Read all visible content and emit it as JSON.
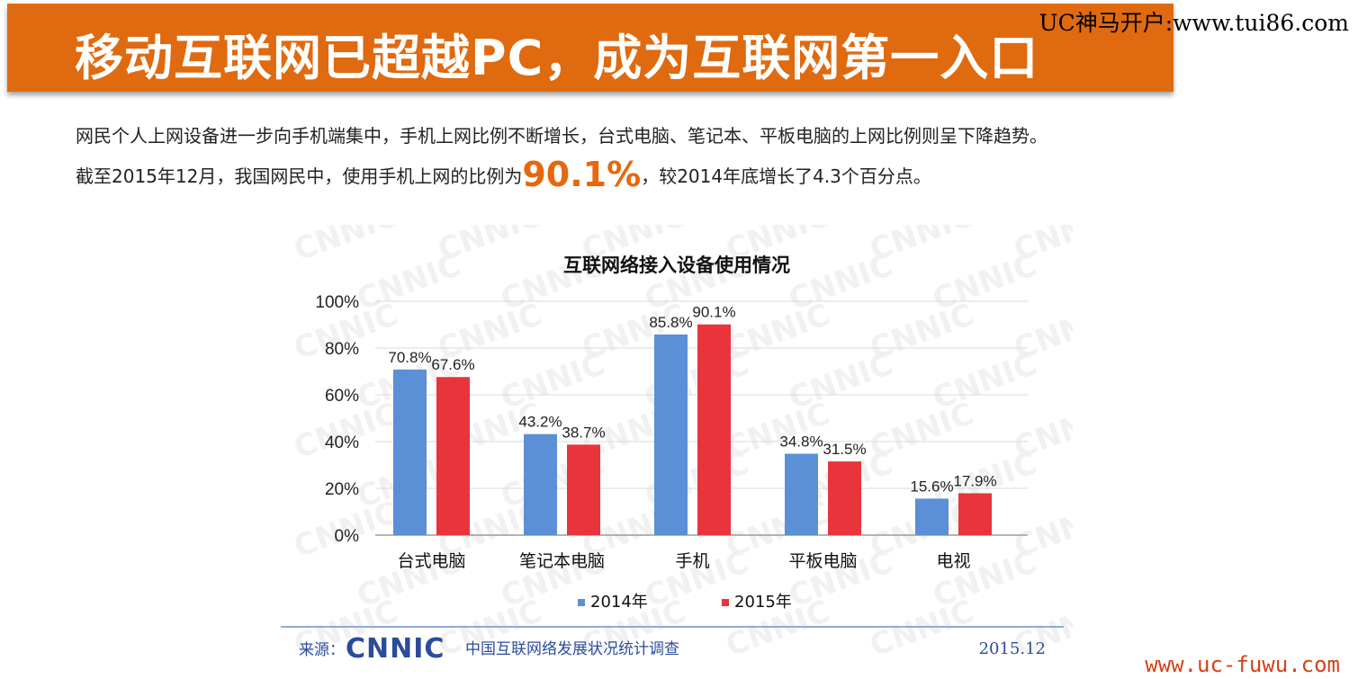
{
  "header": {
    "title": "移动互联网已超越PC，成为互联网第一入口",
    "watermark": "UC神马开户:www.tui86.com"
  },
  "intro": {
    "line1": "网民个人上网设备进一步向手机端集中，手机上网比例不断增长，台式电脑、笔记本、平板电脑的上网比例则呈下降趋势。",
    "line2_before": "截至2015年12月，我国网民中，使用手机上网的比例为",
    "highlight": "90.1%",
    "line2_after": "，较2014年底增长了4.3个百分点。"
  },
  "footer": {
    "source_label": "来源：",
    "org_logo": "CNNIC",
    "org_name": "中国互联网络发展状况统计调查",
    "date": "2015.12",
    "watermark": "www.uc-fuwu.com"
  },
  "colors": {
    "title_bg": "#e06a0f",
    "highlight": "#e8670c",
    "series_2014": "#5b8fd6",
    "series_2015": "#e8343a",
    "logo": "#2b4c9b"
  },
  "chart_data": {
    "type": "bar",
    "title": "互联网络接入设备使用情况",
    "categories": [
      "台式电脑",
      "笔记本电脑",
      "手机",
      "平板电脑",
      "电视"
    ],
    "series": [
      {
        "name": "2014年",
        "values": [
          70.8,
          43.2,
          85.8,
          34.8,
          15.6
        ],
        "labels": [
          "70.8%",
          "43.2%",
          "85.8%",
          "34.8%",
          "15.6%"
        ]
      },
      {
        "name": "2015年",
        "values": [
          67.6,
          38.7,
          90.1,
          31.5,
          17.9
        ],
        "labels": [
          "67.6%",
          "38.7%",
          "90.1%",
          "31.5%",
          "17.9%"
        ]
      }
    ],
    "yticks": [
      "0%",
      "20%",
      "40%",
      "60%",
      "80%",
      "100%"
    ],
    "ylim": [
      0,
      100
    ],
    "grid": true,
    "legend_position": "bottom",
    "watermark_text": "CNNIC"
  }
}
